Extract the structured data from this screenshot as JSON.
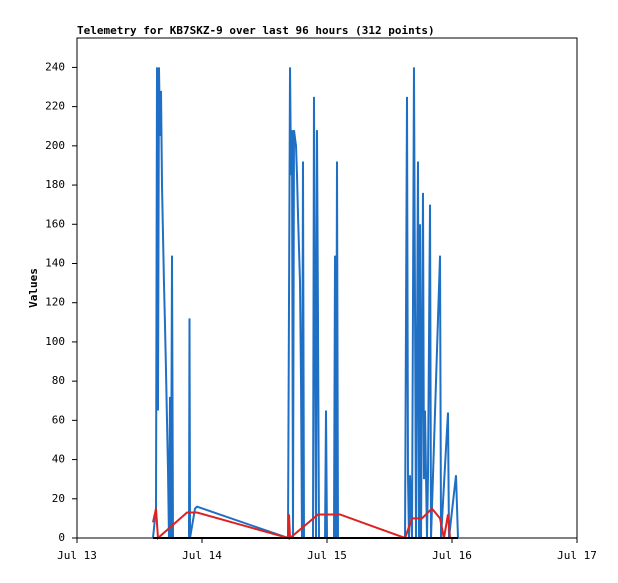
{
  "chart_data": {
    "type": "line",
    "title": "Telemetry for KB7SKZ-9 over last 96 hours (312 points)",
    "y_label": "Values",
    "xlim": [
      0,
      96
    ],
    "xticks": [
      {
        "value": 0,
        "label": "Jul 13"
      },
      {
        "value": 24,
        "label": "Jul 14"
      },
      {
        "value": 48,
        "label": "Jul 15"
      },
      {
        "value": 72,
        "label": "Jul 16"
      },
      {
        "value": 96,
        "label": "Jul 17"
      }
    ],
    "ylim": [
      0,
      255
    ],
    "yticks": [
      0,
      20,
      40,
      60,
      80,
      100,
      120,
      140,
      160,
      180,
      200,
      220,
      240
    ],
    "grid": false,
    "series": [
      {
        "color": "#1f6fc4",
        "x": [
          14.59,
          15.17,
          15.36,
          15.55,
          15.74,
          15.94,
          16.13,
          16.32,
          16.51,
          16.7,
          16.9,
          17.09,
          17.28,
          17.47,
          17.66,
          17.86,
          18.05,
          18.24,
          18.43,
          21.5,
          21.6,
          21.7,
          22.66,
          23.04,
          40.51,
          40.9,
          41.09,
          41.28,
          41.47,
          41.66,
          42.05,
          42.24,
          42.43,
          42.82,
          43.01,
          43.2,
          43.39,
          43.58,
          45.31,
          45.5,
          45.7,
          45.89,
          46.08,
          46.27,
          46.46,
          47.62,
          47.81,
          48.0,
          49.34,
          49.54,
          49.73,
          49.92,
          50.11,
          62.98,
          63.36,
          63.55,
          63.74,
          63.94,
          64.32,
          64.7,
          65.09,
          65.47,
          65.66,
          65.86,
          66.05,
          66.43,
          66.62,
          66.82,
          67.2,
          67.39,
          67.78,
          67.97,
          69.7,
          69.89,
          71.23,
          71.42,
          72.77,
          72.96,
          73.15
        ],
        "values": [
          0,
          15,
          240,
          65,
          240,
          205,
          228,
          180,
          155,
          130,
          108,
          85,
          60,
          35,
          0,
          72,
          0,
          144,
          0,
          0,
          112,
          0,
          15,
          16,
          0,
          240,
          185,
          208,
          0,
          208,
          200,
          185,
          165,
          130,
          80,
          0,
          192,
          0,
          0,
          225,
          112,
          0,
          208,
          112,
          0,
          0,
          65,
          0,
          0,
          144,
          0,
          192,
          0,
          0,
          225,
          32,
          0,
          32,
          0,
          240,
          0,
          192,
          0,
          160,
          0,
          176,
          30,
          65,
          0,
          32,
          170,
          0,
          144,
          0,
          64,
          0,
          32,
          16,
          0
        ]
      },
      {
        "color": "#dd2222",
        "x": [
          14.59,
          15.17,
          15.55,
          21.12,
          23.04,
          40.51,
          40.7,
          40.9,
          46.27,
          50.5,
          62.98,
          64.32,
          66.24,
          68.16,
          69.7,
          70.46,
          71.23,
          71.62
        ],
        "values": [
          8,
          15,
          0,
          13,
          13,
          0,
          12,
          0,
          12,
          12,
          0,
          10,
          10,
          15,
          10,
          0,
          12,
          0
        ]
      },
      {
        "color": "#000000",
        "x": [
          14.59,
          73.15
        ],
        "values": [
          0,
          0
        ]
      }
    ]
  }
}
